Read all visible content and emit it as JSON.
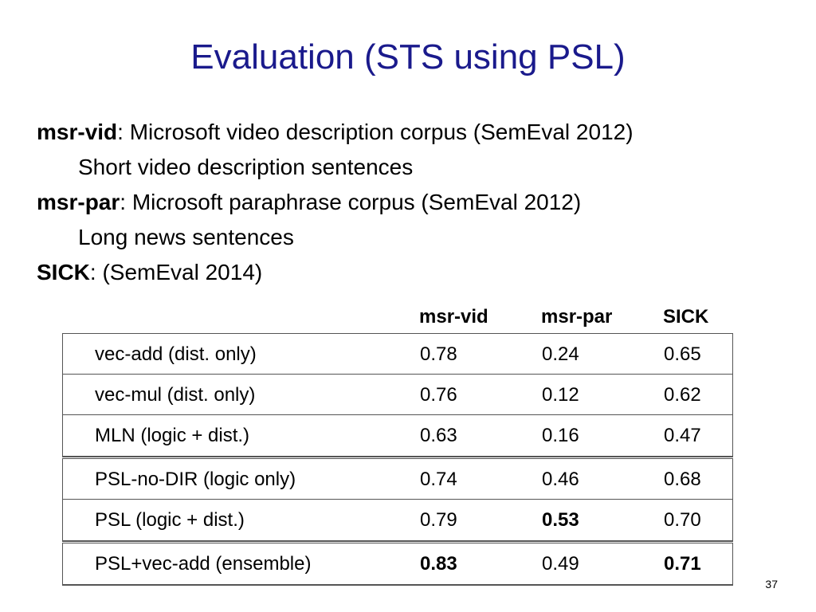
{
  "title": "Evaluation (STS using PSL)",
  "bullets": [
    {
      "term": "msr-vid",
      "text": ": Microsoft video description corpus (SemEval 2012)"
    },
    {
      "sub": "Short video description sentences"
    },
    {
      "term": "msr-par",
      "text": ": Microsoft paraphrase corpus  (SemEval 2012)"
    },
    {
      "sub": "Long news sentences"
    },
    {
      "term": "SICK",
      "text": ": (SemEval 2014)"
    }
  ],
  "table": {
    "columns": [
      "msr-vid",
      "msr-par",
      "SICK"
    ],
    "rows": [
      {
        "name": "vec-add (dist. only)",
        "values": [
          "0.78",
          "0.24",
          "0.65"
        ]
      },
      {
        "name": "vec-mul (dist. only)",
        "values": [
          "0.76",
          "0.12",
          "0.62"
        ]
      },
      {
        "name": "MLN (logic + dist.)",
        "values": [
          "0.63",
          "0.16",
          "0.47"
        ]
      },
      {
        "name": "PSL-no-DIR (logic only)",
        "values": [
          "0.74",
          "0.46",
          "0.68"
        ]
      },
      {
        "name": "PSL (logic + dist.)",
        "values": [
          "0.79",
          "0.53",
          "0.70"
        ]
      },
      {
        "name": "PSL+vec-add (ensemble)",
        "values": [
          "0.83",
          "0.49",
          "0.71"
        ]
      }
    ],
    "bold_cells": [
      [
        4,
        1
      ],
      [
        5,
        0
      ],
      [
        5,
        2
      ]
    ]
  },
  "page_number": "37",
  "colors": {
    "title": "#1a1a8c",
    "text": "#000000",
    "border": "#555555"
  }
}
